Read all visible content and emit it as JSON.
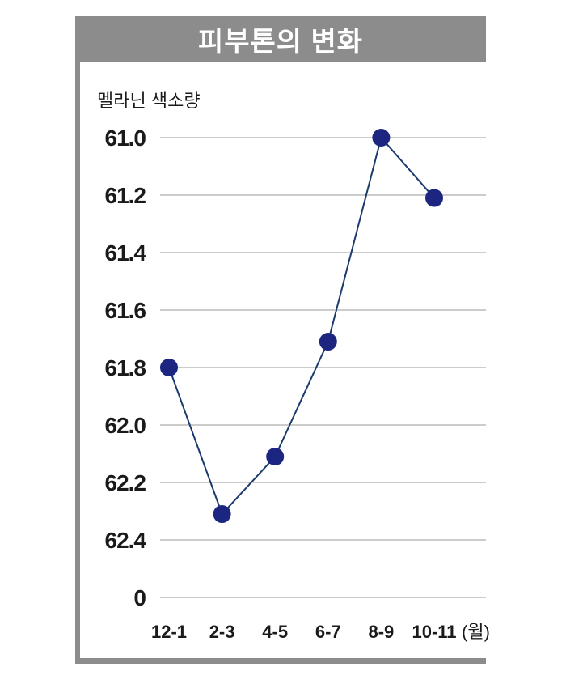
{
  "colors": {
    "frame": "#8c8c8c",
    "title_text": "#ffffff",
    "grid": "#9a9a9a",
    "line": "#1b3a6e",
    "marker": "#1c2680",
    "text": "#1a1a1a"
  },
  "chart_data": {
    "type": "line",
    "title": "피부톤의 변화",
    "ylabel": "멜라닌 색소량",
    "x_unit": "(월)",
    "categories": [
      "12-1",
      "2-3",
      "4-5",
      "6-7",
      "8-9",
      "10-11"
    ],
    "y_ticks": [
      "61.0",
      "61.2",
      "61.4",
      "61.6",
      "61.8",
      "62.0",
      "62.2",
      "62.4",
      "0"
    ],
    "y_inverted": true,
    "ylim": [
      61.0,
      62.6
    ],
    "grid": true,
    "series": [
      {
        "values": [
          61.8,
          62.31,
          62.11,
          61.71,
          61.0,
          61.21
        ]
      }
    ]
  }
}
